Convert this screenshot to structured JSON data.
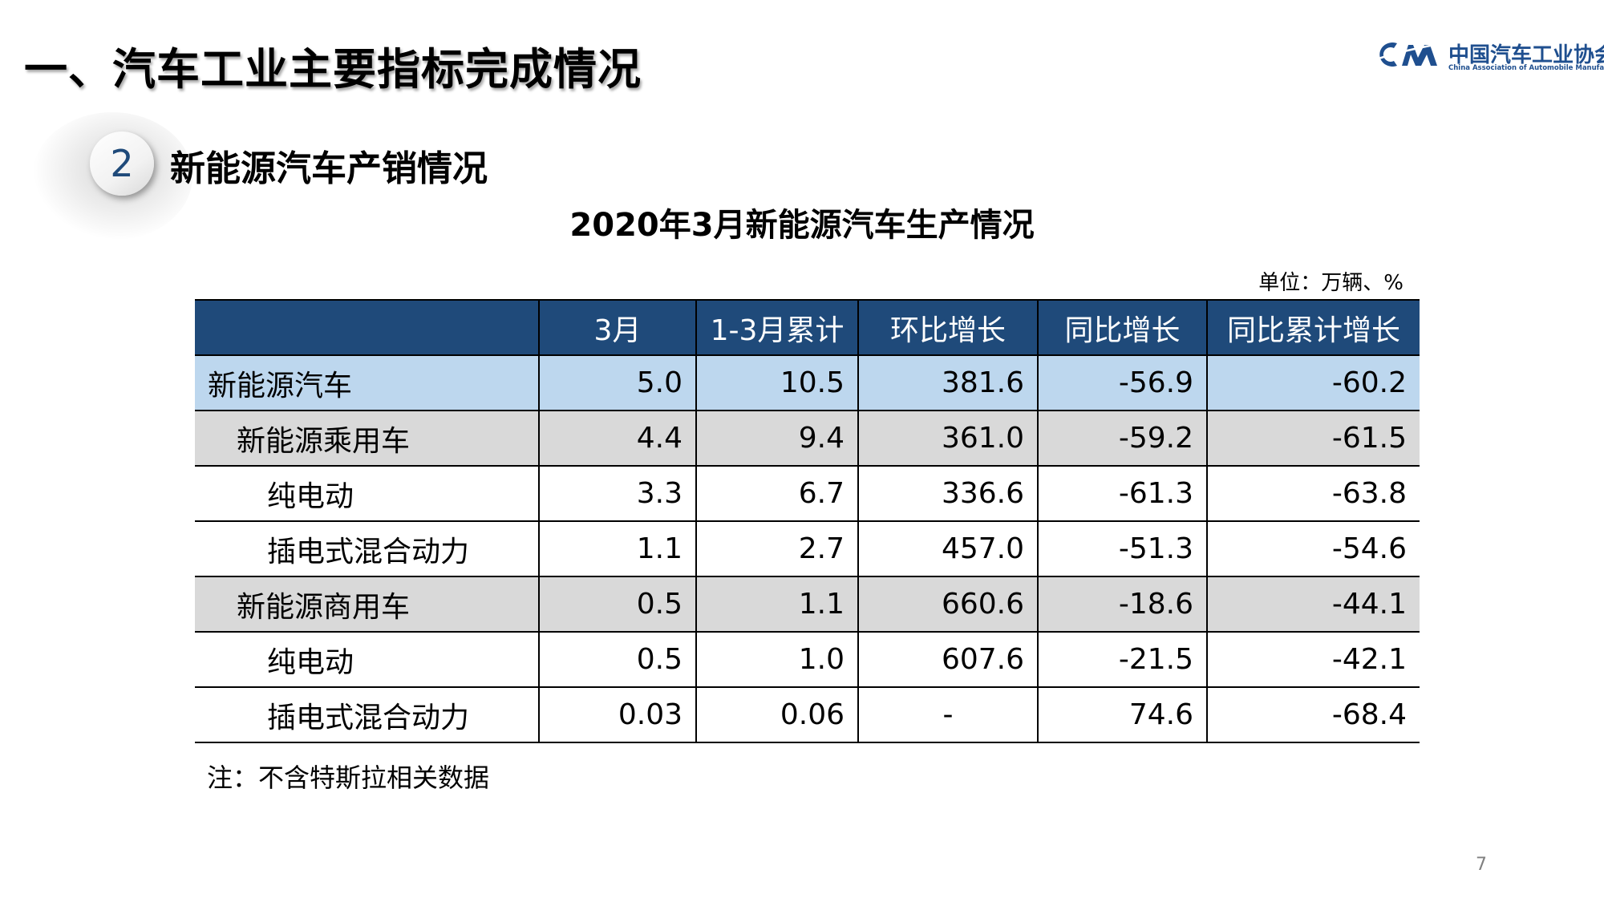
{
  "page": {
    "heading": "一、汽车工业主要指标完成情况",
    "page_number": "7"
  },
  "logo": {
    "name_cn": "中国汽车工业协会",
    "name_en": "China Association of Automobile Manufacturers",
    "brand_color": "#1f4f8f"
  },
  "section": {
    "number": "2",
    "title": "新能源汽车产销情况"
  },
  "table": {
    "title": "2020年3月新能源汽车生产情况",
    "unit": "单位：万辆、%",
    "header_color": "#1f4a7a",
    "columns": [
      "",
      "3月",
      "1-3月累计",
      "环比增长",
      "同比增长",
      "同比累计增长"
    ],
    "rows": [
      {
        "level": 0,
        "name": "新能源汽车",
        "values": [
          "5.0",
          "10.5",
          "381.6",
          "-56.9",
          "-60.2"
        ]
      },
      {
        "level": 1,
        "name": "新能源乘用车",
        "values": [
          "4.4",
          "9.4",
          "361.0",
          "-59.2",
          "-61.5"
        ]
      },
      {
        "level": 2,
        "name": "纯电动",
        "values": [
          "3.3",
          "6.7",
          "336.6",
          "-61.3",
          "-63.8"
        ]
      },
      {
        "level": 2,
        "name": "插电式混合动力",
        "values": [
          "1.1",
          "2.7",
          "457.0",
          "-51.3",
          "-54.6"
        ]
      },
      {
        "level": 1,
        "name": "新能源商用车",
        "values": [
          "0.5",
          "1.1",
          "660.6",
          "-18.6",
          "-44.1"
        ]
      },
      {
        "level": 2,
        "name": "纯电动",
        "values": [
          "0.5",
          "1.0",
          "607.6",
          "-21.5",
          "-42.1"
        ]
      },
      {
        "level": 2,
        "name": "插电式混合动力",
        "values": [
          "0.03",
          "0.06",
          "-",
          "74.6",
          "-68.4"
        ]
      }
    ],
    "row_colors": {
      "level0": "#bdd7ee",
      "level1": "#d9d9d9",
      "level2": "#ffffff"
    }
  },
  "footnote": "注：不含特斯拉相关数据"
}
